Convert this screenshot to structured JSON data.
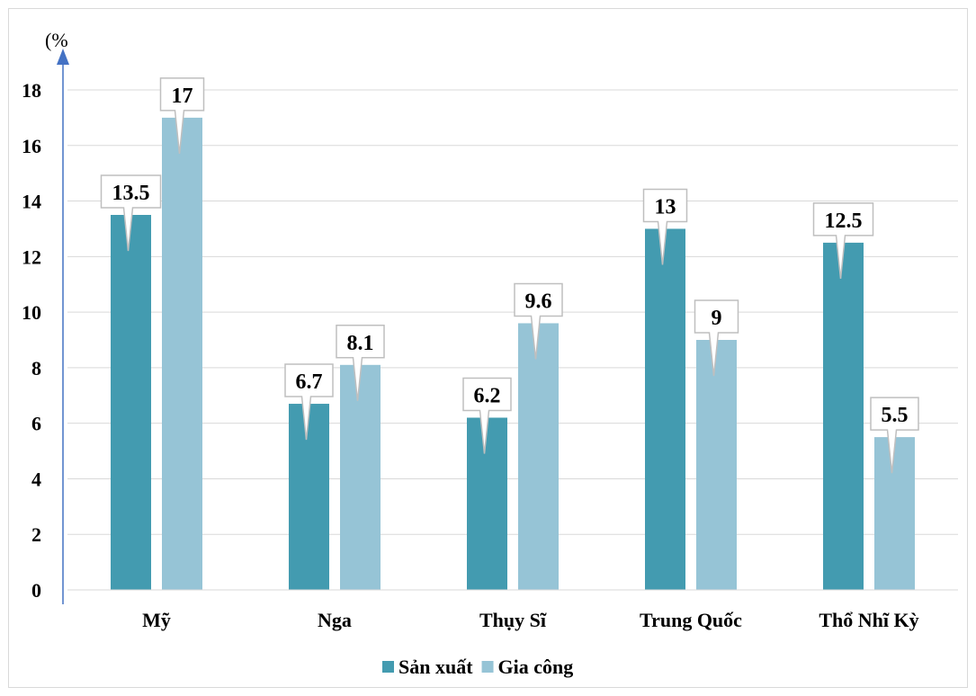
{
  "chart_data": {
    "type": "bar",
    "title": "",
    "xlabel": "",
    "ylabel": "(%",
    "categories": [
      "Mỹ",
      "Nga",
      "Thụy Sĩ",
      "Trung Quốc",
      "Thổ Nhĩ Kỳ"
    ],
    "series": [
      {
        "name": "Sản xuất",
        "color": "#439bb0",
        "values": [
          13.5,
          6.7,
          6.2,
          13,
          12.5
        ]
      },
      {
        "name": "Gia công",
        "color": "#96c4d6",
        "values": [
          17,
          8.1,
          9.6,
          9,
          5.5
        ]
      }
    ],
    "yticks": [
      0,
      2,
      4,
      6,
      8,
      10,
      12,
      14,
      16,
      18
    ],
    "ylim": [
      0,
      19
    ],
    "grid": true,
    "legend_position": "bottom",
    "axis_color": "#4472c4"
  }
}
